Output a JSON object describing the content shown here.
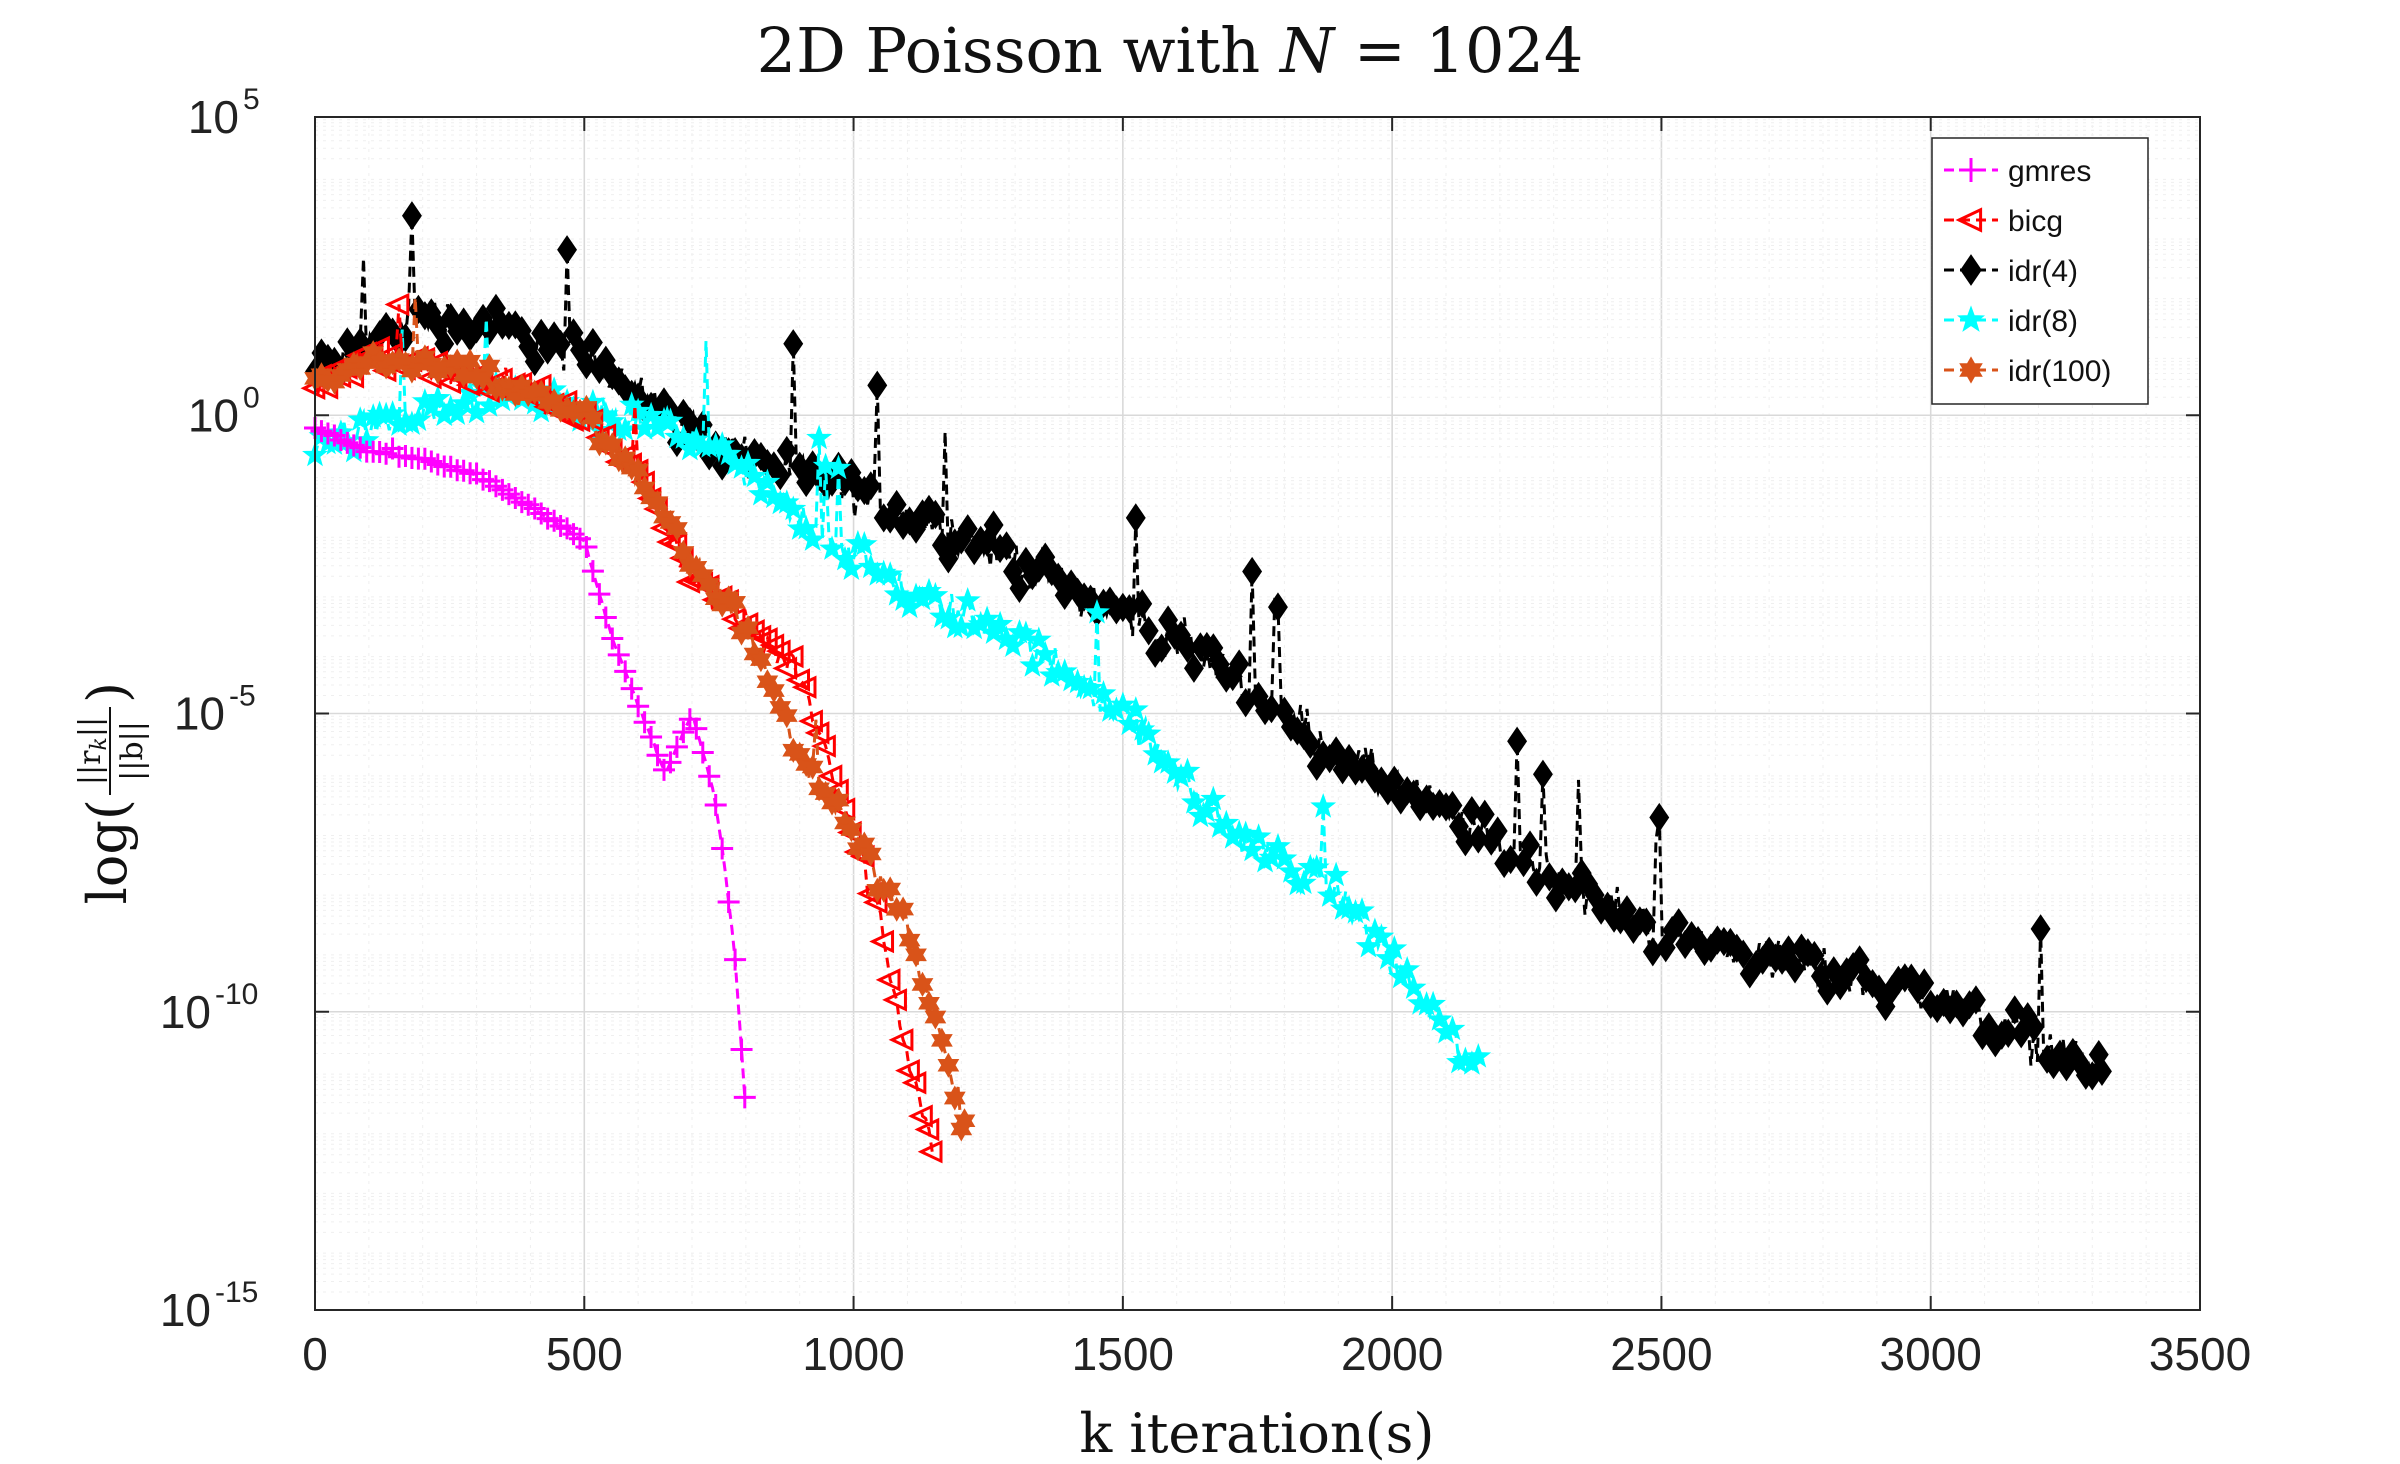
{
  "chart_data": {
    "type": "line",
    "title": {
      "prefix": "2D Poisson with ",
      "variable": "N",
      "suffix": " = 1024"
    },
    "xlabel": "k iteration(s)",
    "ylabel": "log(||r_k||/||b||)",
    "ylabel_parts": {
      "pre": "log(",
      "num": "||r",
      "num_sub": "k",
      "num_post": "||",
      "den": "||b||",
      "post": ")"
    },
    "x_scale": "linear",
    "y_scale": "log",
    "xlim": [
      0,
      3500
    ],
    "ylim": [
      1e-15,
      100000
    ],
    "x_ticks": [
      "0",
      "500",
      "1000",
      "1500",
      "2000",
      "2500",
      "3000",
      "3500"
    ],
    "x_tick_values": [
      0,
      500,
      1000,
      1500,
      2000,
      2500,
      3000,
      3500
    ],
    "y_ticks": [
      {
        "value": 1e-15,
        "base": "10",
        "exp": "-15"
      },
      {
        "value": 1e-10,
        "base": "10",
        "exp": "-10"
      },
      {
        "value": 1e-05,
        "base": "10",
        "exp": "-5"
      },
      {
        "value": 1,
        "base": "10",
        "exp": "0"
      },
      {
        "value": 100000,
        "base": "10",
        "exp": "5"
      }
    ],
    "grid": true,
    "minor_grid": true,
    "legend_position": "top-right",
    "series": [
      {
        "name": "gmres",
        "color": "#ff00ff",
        "marker": "plus",
        "noise": 0.04,
        "order": 5,
        "points": [
          [
            0,
            0.6
          ],
          [
            100,
            0.25
          ],
          [
            200,
            0.18
          ],
          [
            300,
            0.1
          ],
          [
            400,
            0.03
          ],
          [
            500,
            0.008
          ],
          [
            550,
            0.0002
          ],
          [
            650,
            1e-06
          ],
          [
            700,
            1e-05
          ],
          [
            740,
            5e-07
          ],
          [
            760,
            3e-08
          ],
          [
            780,
            8e-10
          ],
          [
            800,
            2e-12
          ]
        ]
      },
      {
        "name": "bicg",
        "color": "#ff0000",
        "marker": "triangle-left",
        "noise": 0.35,
        "order": 3,
        "points": [
          [
            0,
            3
          ],
          [
            100,
            10
          ],
          [
            300,
            5
          ],
          [
            500,
            1
          ],
          [
            600,
            0.1
          ],
          [
            700,
            0.002
          ],
          [
            800,
            0.0003
          ],
          [
            900,
            5e-05
          ],
          [
            1000,
            1e-07
          ],
          [
            1050,
            3e-09
          ],
          [
            1100,
            2e-11
          ],
          [
            1150,
            5e-13
          ]
        ]
      },
      {
        "name": "idr(4)",
        "color": "#000000",
        "marker": "diamond",
        "noise": 0.55,
        "order": 1,
        "points": [
          [
            0,
            5
          ],
          [
            200,
            50
          ],
          [
            400,
            20
          ],
          [
            570,
            5
          ],
          [
            700,
            0.5
          ],
          [
            900,
            0.1
          ],
          [
            1000,
            0.05
          ],
          [
            1200,
            0.01
          ],
          [
            1500,
            0.0005
          ],
          [
            1700,
            5e-05
          ],
          [
            1900,
            2e-06
          ],
          [
            2100,
            2e-07
          ],
          [
            2500,
            2e-09
          ],
          [
            3000,
            2e-10
          ],
          [
            3320,
            1e-11
          ]
        ]
      },
      {
        "name": "idr(8)",
        "color": "#00ffff",
        "marker": "star",
        "noise": 0.45,
        "order": 2,
        "points": [
          [
            0,
            0.3
          ],
          [
            200,
            1
          ],
          [
            400,
            2
          ],
          [
            500,
            1
          ],
          [
            700,
            0.5
          ],
          [
            900,
            0.02
          ],
          [
            1100,
            0.001
          ],
          [
            1300,
            0.0002
          ],
          [
            1500,
            1e-05
          ],
          [
            1700,
            1e-07
          ],
          [
            1900,
            1e-08
          ],
          [
            2050,
            2e-10
          ],
          [
            2160,
            1e-11
          ]
        ]
      },
      {
        "name": "idr(100)",
        "color": "#d95319",
        "marker": "hexagram",
        "noise": 0.35,
        "order": 4,
        "points": [
          [
            0,
            3
          ],
          [
            100,
            8
          ],
          [
            300,
            5
          ],
          [
            500,
            1
          ],
          [
            600,
            0.1
          ],
          [
            700,
            0.003
          ],
          [
            800,
            0.0003
          ],
          [
            900,
            2e-06
          ],
          [
            1000,
            1e-07
          ],
          [
            1100,
            3e-09
          ],
          [
            1210,
            1e-12
          ]
        ]
      }
    ]
  }
}
